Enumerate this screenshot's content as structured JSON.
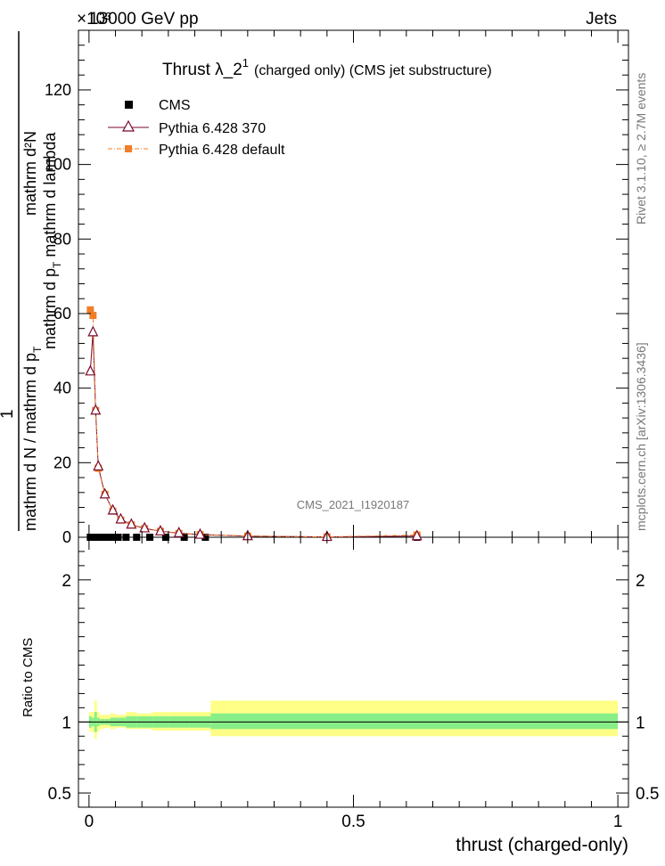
{
  "header": {
    "left": "13000 GeV pp",
    "right": "Jets",
    "exponent": "×10³"
  },
  "plot_title": {
    "main": "Thrust λ_2",
    "superscript": "1",
    "suffix": "(charged only) (CMS jet substructure)"
  },
  "side_labels": {
    "rivet": "Rivet 3.1.10, ≥ 2.7M events",
    "mcplots": "mcplots.cern.ch [arXiv:1306.3436]"
  },
  "watermark": "CMS_2021_I1920187",
  "main_ylabel": {
    "numerator": "1",
    "denominator_line": "mathrm d N / mathrm d p",
    "denominator_sub": "T",
    "numerator_line": "mathrm d²N",
    "numerator_line2": "mathrm d p",
    "numerator_sub": "T",
    "numerator_tail": " mathrm d lambda"
  },
  "ratio_ylabel": "Ratio to CMS",
  "xlabel": "thrust (charged-only)",
  "legend": [
    {
      "label": "CMS",
      "color": "#000000",
      "marker": "square"
    },
    {
      "label": "Pythia 6.428 370",
      "color": "#7b0a2a",
      "marker": "open-triangle"
    },
    {
      "label": "Pythia 6.428 default",
      "color": "#f07f2a",
      "marker": "filled-square"
    }
  ],
  "chart_data": [
    {
      "type": "line",
      "title": "Thrust λ_2^1 (charged only) (CMS jet substructure)",
      "xlabel": "thrust (charged-only)",
      "ylabel": "1 / (mathrm d N / mathrm d p_T) mathrm d²N / (mathrm d p_T mathrm d lambda)",
      "xlim": [
        -0.02,
        1.02
      ],
      "ylim": [
        0,
        136
      ],
      "y_multiplier": "×10³",
      "yticks": [
        0,
        20,
        40,
        60,
        80,
        100,
        120
      ],
      "series": [
        {
          "name": "CMS",
          "color": "#000000",
          "x": [
            0.0025,
            0.0075,
            0.0125,
            0.0175,
            0.025,
            0.035,
            0.045,
            0.055,
            0.07,
            0.09,
            0.115,
            0.145,
            0.18,
            0.22,
            0.62
          ],
          "y": [
            0,
            0,
            0,
            0,
            0,
            0,
            0,
            0,
            0,
            0,
            0,
            0,
            0,
            0,
            0
          ]
        },
        {
          "name": "Pythia 6.428 370",
          "color": "#7b0a2a",
          "x": [
            0.0025,
            0.0075,
            0.0125,
            0.0175,
            0.03,
            0.045,
            0.06,
            0.08,
            0.105,
            0.135,
            0.17,
            0.21,
            0.3,
            0.45,
            0.62
          ],
          "y": [
            44.5,
            55,
            34,
            19,
            11.5,
            7.2,
            4.8,
            3.4,
            2.4,
            1.6,
            1.1,
            0.7,
            0.3,
            0.1,
            0.3
          ]
        },
        {
          "name": "Pythia 6.428 default",
          "color": "#f07f2a",
          "x": [
            0.0025,
            0.0075,
            0.0125,
            0.0175,
            0.03,
            0.045,
            0.06,
            0.08,
            0.105,
            0.135,
            0.17,
            0.21,
            0.3,
            0.45,
            0.62
          ],
          "y": [
            61,
            59.5,
            34,
            18.5,
            11.5,
            7,
            4.6,
            3.3,
            2.3,
            1.6,
            1.0,
            0.7,
            0.3,
            0.1,
            0.6
          ]
        }
      ]
    },
    {
      "type": "area",
      "title": "",
      "xlabel": "thrust (charged-only)",
      "ylabel": "Ratio to CMS",
      "xlim": [
        -0.02,
        1.02
      ],
      "ylim": [
        0.4,
        2.3
      ],
      "yticks": [
        0.5,
        1,
        2
      ],
      "xticks": [
        0,
        0.5,
        1
      ],
      "bins": [
        0,
        0.005,
        0.01,
        0.015,
        0.02,
        0.03,
        0.04,
        0.05,
        0.07,
        0.09,
        0.12,
        0.15,
        0.19,
        0.23,
        1.0
      ],
      "bands": [
        {
          "name": "total uncertainty",
          "color": "#ffff88",
          "lo": [
            0.93,
            0.93,
            0.88,
            0.93,
            0.95,
            0.96,
            0.95,
            0.96,
            0.95,
            0.95,
            0.94,
            0.94,
            0.94,
            0.9
          ],
          "hi": [
            1.07,
            1.07,
            1.15,
            1.07,
            1.05,
            1.05,
            1.06,
            1.05,
            1.07,
            1.06,
            1.07,
            1.07,
            1.07,
            1.15
          ]
        },
        {
          "name": "statistical uncertainty",
          "color": "#88ee88",
          "lo": [
            0.96,
            0.97,
            0.93,
            0.97,
            0.98,
            0.98,
            0.97,
            0.97,
            0.96,
            0.96,
            0.96,
            0.96,
            0.96,
            0.95
          ],
          "hi": [
            1.04,
            1.03,
            1.07,
            1.03,
            1.02,
            1.02,
            1.03,
            1.03,
            1.04,
            1.04,
            1.04,
            1.04,
            1.04,
            1.06
          ]
        }
      ]
    }
  ]
}
